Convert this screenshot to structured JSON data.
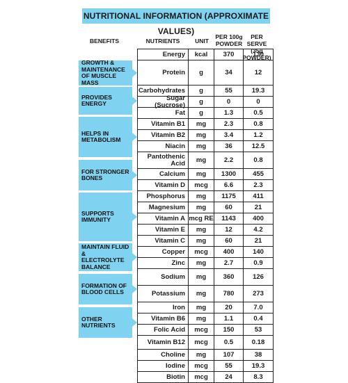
{
  "title": "NUTRITIONAL INFORMATION (APPROXIMATE VALUES)",
  "headers": {
    "benefits": "BENEFITS",
    "nutrients": "NUTRIENTS",
    "unit": "UNIT",
    "per100": "PER 100g POWDER",
    "perServe": "PER SERVE (35g POWDER)"
  },
  "rows": [
    {
      "name": "Energy",
      "unit": "kcal",
      "v1": "370",
      "v2": "130"
    },
    {
      "name": "Protein",
      "unit": "g",
      "v1": "34",
      "v2": "12"
    },
    {
      "name": "Carbohydrates",
      "unit": "g",
      "v1": "55",
      "v2": "19.3"
    },
    {
      "name": "Sugar (Sucrose)",
      "unit": "g",
      "v1": "0",
      "v2": "0"
    },
    {
      "name": "Fat",
      "unit": "g",
      "v1": "1.3",
      "v2": "0.5"
    },
    {
      "name": "Vitamin B1",
      "unit": "mg",
      "v1": "2.3",
      "v2": "0.8"
    },
    {
      "name": "Vitamin B2",
      "unit": "mg",
      "v1": "3.4",
      "v2": "1.2"
    },
    {
      "name": "Niacin",
      "unit": "mg",
      "v1": "36",
      "v2": "12.5"
    },
    {
      "name": "Pantothenic Acid",
      "unit": "mg",
      "v1": "2.2",
      "v2": "0.8"
    },
    {
      "name": "Calcium",
      "unit": "mg",
      "v1": "1300",
      "v2": "455"
    },
    {
      "name": "Vitamin D",
      "unit": "mcg",
      "v1": "6.6",
      "v2": "2.3"
    },
    {
      "name": "Phosphorus",
      "unit": "mg",
      "v1": "1175",
      "v2": "411"
    },
    {
      "name": "Magnesium",
      "unit": "mg",
      "v1": "60",
      "v2": "21"
    },
    {
      "name": "Vitamin A",
      "unit": "mcg RE",
      "v1": "1143",
      "v2": "400"
    },
    {
      "name": "Vitamin E",
      "unit": "mg",
      "v1": "12",
      "v2": "4.2"
    },
    {
      "name": "Vitamin C",
      "unit": "mg",
      "v1": "60",
      "v2": "21"
    },
    {
      "name": "Copper",
      "unit": "mcg",
      "v1": "400",
      "v2": "140"
    },
    {
      "name": "Zinc",
      "unit": "mg",
      "v1": "2.7",
      "v2": "0.9"
    },
    {
      "name": "Sodium",
      "unit": "mg",
      "v1": "360",
      "v2": "126"
    },
    {
      "name": "Potassium",
      "unit": "mg",
      "v1": "780",
      "v2": "273"
    },
    {
      "name": "Iron",
      "unit": "mg",
      "v1": "20",
      "v2": "7.0"
    },
    {
      "name": "Vitamin B6",
      "unit": "mg",
      "v1": "1.1",
      "v2": "0.4"
    },
    {
      "name": "Folic Acid",
      "unit": "mcg",
      "v1": "150",
      "v2": "53"
    },
    {
      "name": "Vitamin B12",
      "unit": "mcg",
      "v1": "0.5",
      "v2": "0.18"
    },
    {
      "name": "Choline",
      "unit": "mg",
      "v1": "107",
      "v2": "38"
    },
    {
      "name": "Iodine",
      "unit": "mcg",
      "v1": "55",
      "v2": "19.3"
    },
    {
      "name": "Biotin",
      "unit": "mcg",
      "v1": "24",
      "v2": "8.3"
    }
  ],
  "groups": [
    {
      "label": "GROWTH & MAINTENANCE OF MUSCLE MASS"
    },
    {
      "label": "PROVIDES ENERGY"
    },
    {
      "label": "HELPS IN METABOLISM"
    },
    {
      "label": "FOR STRONGER BONES"
    },
    {
      "label": "SUPPORTS IMMUNITY"
    },
    {
      "label": "MAINTAIN FLUID & ELECTROLYTE BALANCE"
    },
    {
      "label": "FORMATION OF BLOOD CELLS"
    },
    {
      "label": "OTHER NUTRIENTS"
    }
  ]
}
